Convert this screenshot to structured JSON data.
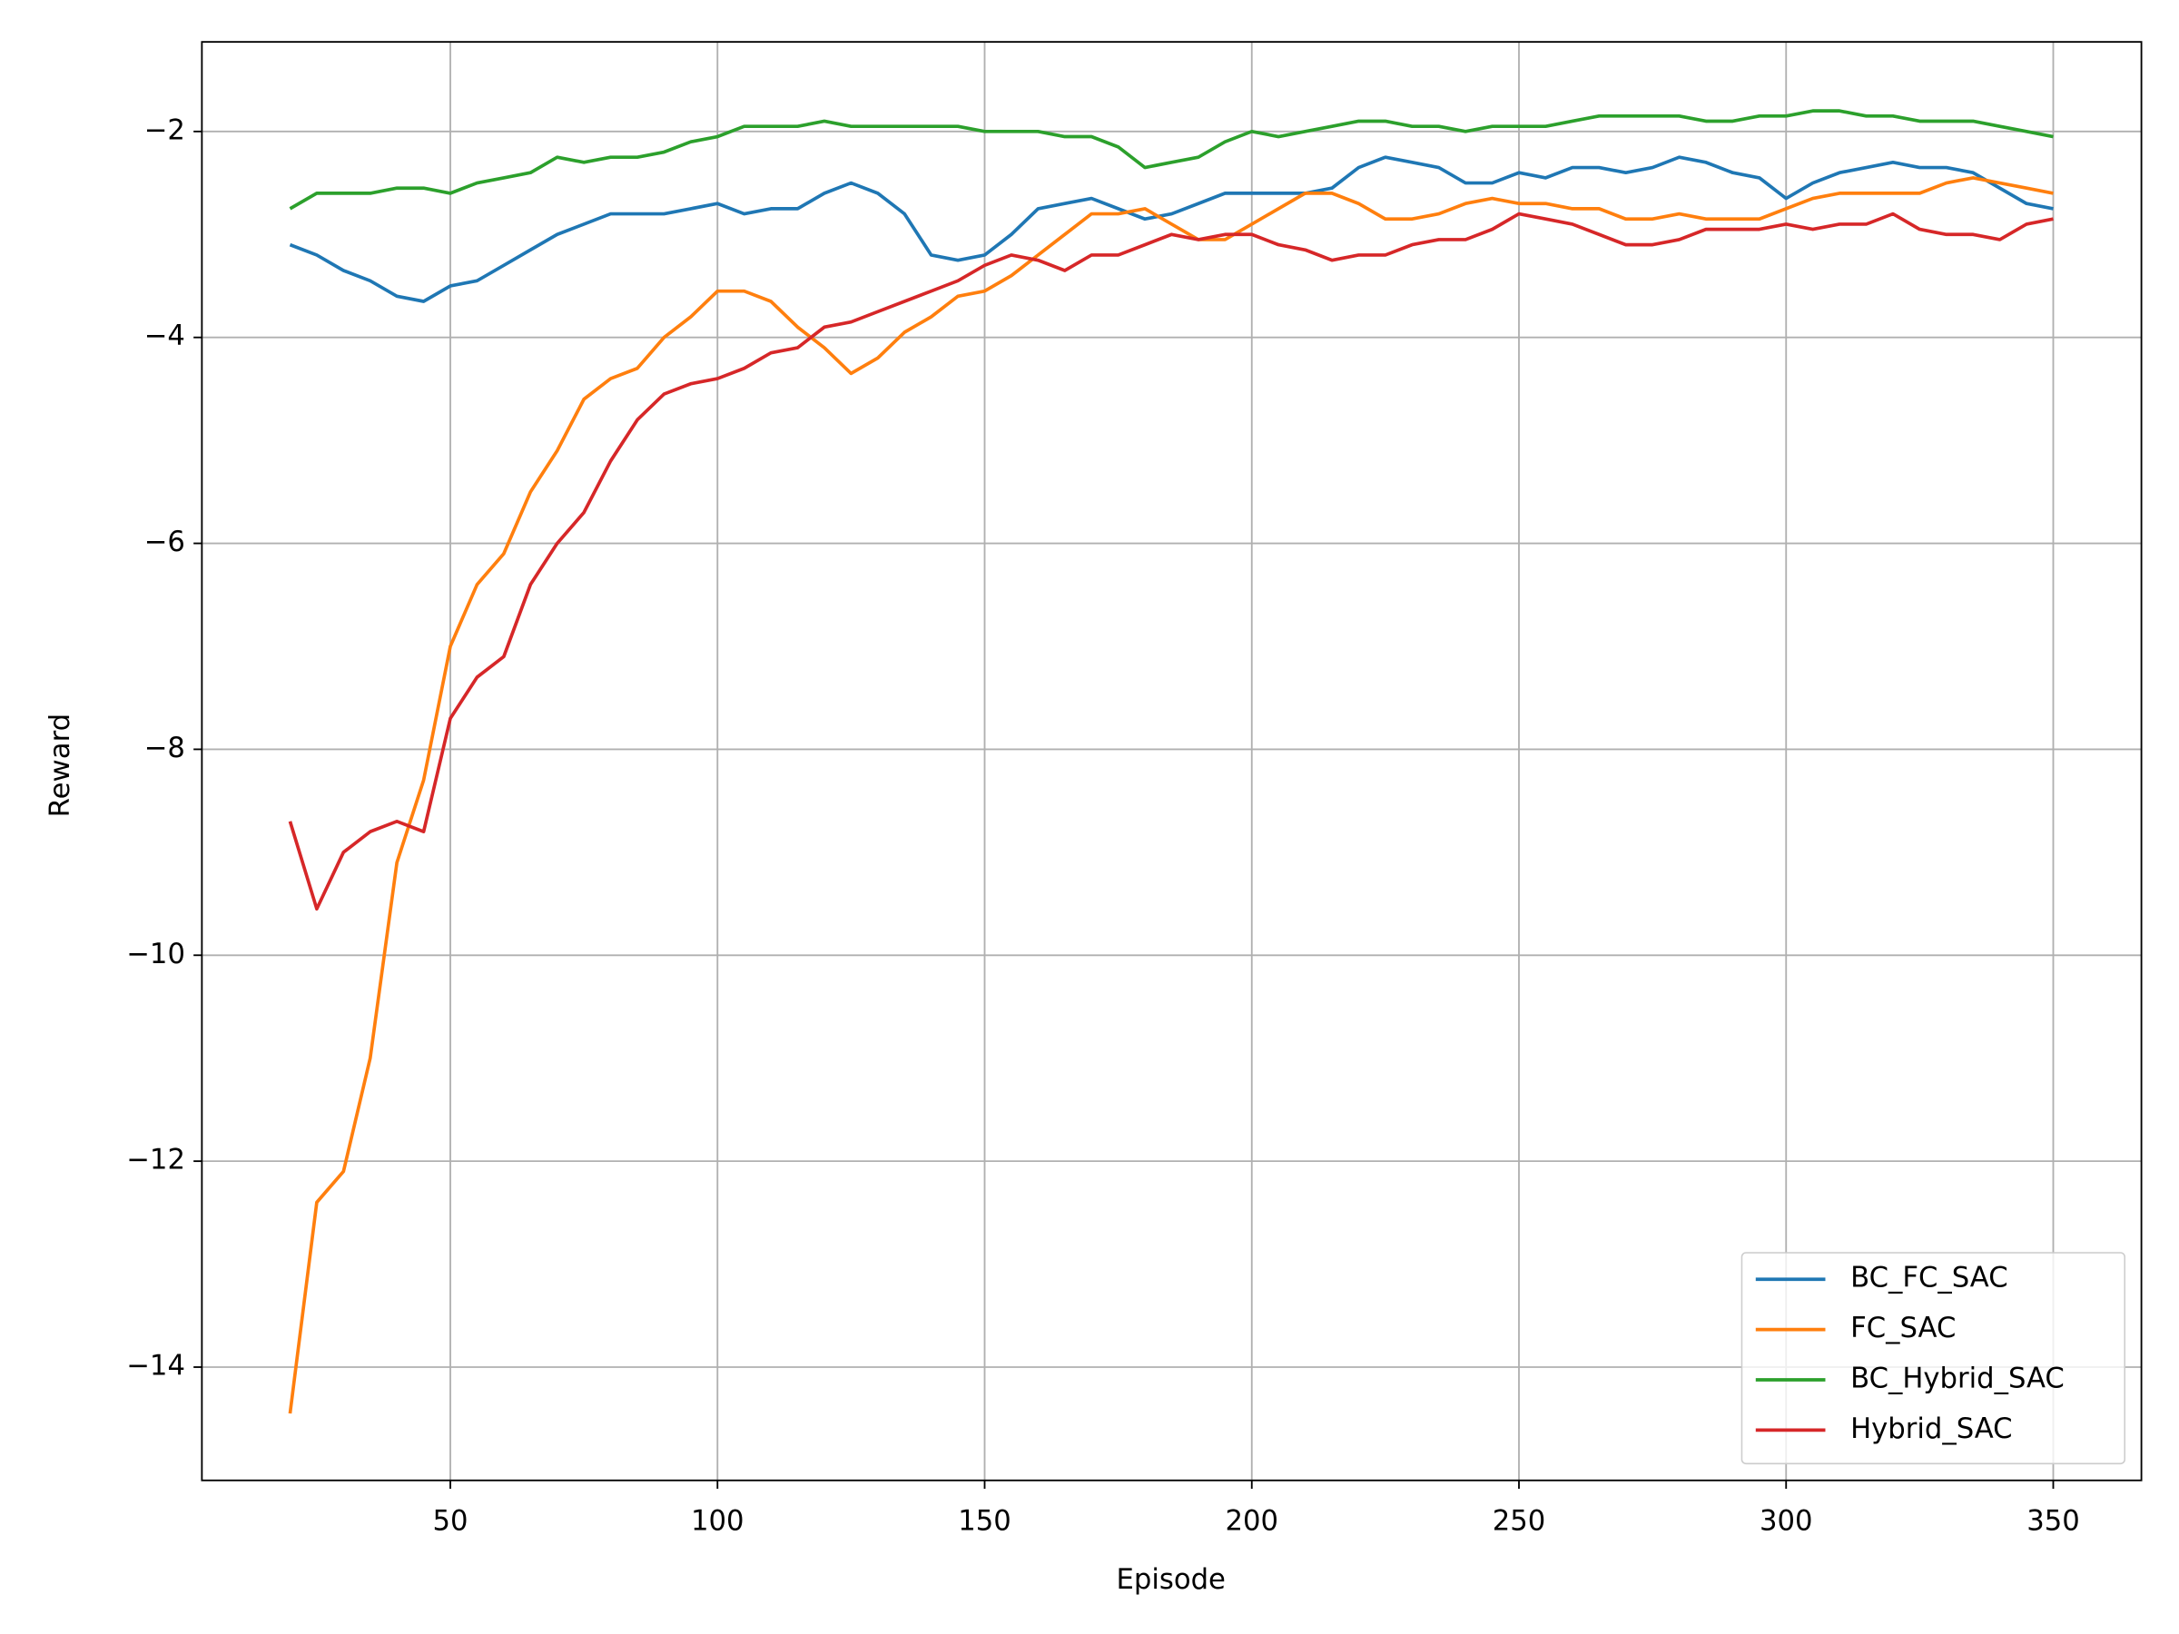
{
  "chart_data": {
    "type": "line",
    "xlabel": "Episode",
    "ylabel": "Reward",
    "x": [
      20,
      25,
      30,
      35,
      40,
      45,
      50,
      55,
      60,
      65,
      70,
      75,
      80,
      85,
      90,
      95,
      100,
      105,
      110,
      115,
      120,
      125,
      130,
      135,
      140,
      145,
      150,
      155,
      160,
      165,
      170,
      175,
      180,
      185,
      190,
      195,
      200,
      205,
      210,
      215,
      220,
      225,
      230,
      235,
      240,
      245,
      250,
      255,
      260,
      265,
      270,
      275,
      280,
      285,
      290,
      295,
      300,
      305,
      310,
      315,
      320,
      325,
      330,
      335,
      340,
      345,
      350
    ],
    "series": [
      {
        "name": "BC_FC_SAC",
        "color": "#1f77b4",
        "values": [
          -3.1,
          -3.2,
          -3.35,
          -3.45,
          -3.6,
          -3.65,
          -3.5,
          -3.45,
          -3.3,
          -3.15,
          -3.0,
          -2.9,
          -2.8,
          -2.8,
          -2.8,
          -2.75,
          -2.7,
          -2.8,
          -2.75,
          -2.75,
          -2.6,
          -2.5,
          -2.6,
          -2.8,
          -3.2,
          -3.25,
          -3.2,
          -3.0,
          -2.75,
          -2.7,
          -2.65,
          -2.75,
          -2.85,
          -2.8,
          -2.7,
          -2.6,
          -2.6,
          -2.6,
          -2.6,
          -2.55,
          -2.35,
          -2.25,
          -2.3,
          -2.35,
          -2.5,
          -2.5,
          -2.4,
          -2.45,
          -2.35,
          -2.35,
          -2.4,
          -2.35,
          -2.25,
          -2.3,
          -2.4,
          -2.45,
          -2.65,
          -2.5,
          -2.4,
          -2.35,
          -2.3,
          -2.35,
          -2.35,
          -2.4,
          -2.55,
          -2.7,
          -2.75
        ]
      },
      {
        "name": "FC_SAC",
        "color": "#ff7f0e",
        "values": [
          -14.45,
          -12.4,
          -12.1,
          -11.0,
          -9.1,
          -8.3,
          -7.0,
          -6.4,
          -6.1,
          -5.5,
          -5.1,
          -4.6,
          -4.4,
          -4.3,
          -4.0,
          -3.8,
          -3.55,
          -3.55,
          -3.65,
          -3.9,
          -4.1,
          -4.35,
          -4.2,
          -3.95,
          -3.8,
          -3.6,
          -3.55,
          -3.4,
          -3.2,
          -3.0,
          -2.8,
          -2.8,
          -2.75,
          -2.9,
          -3.05,
          -3.05,
          -2.9,
          -2.75,
          -2.6,
          -2.6,
          -2.7,
          -2.85,
          -2.85,
          -2.8,
          -2.7,
          -2.65,
          -2.7,
          -2.7,
          -2.75,
          -2.75,
          -2.85,
          -2.85,
          -2.8,
          -2.85,
          -2.85,
          -2.85,
          -2.75,
          -2.65,
          -2.6,
          -2.6,
          -2.6,
          -2.6,
          -2.5,
          -2.45,
          -2.5,
          -2.55,
          -2.6
        ]
      },
      {
        "name": "BC_Hybrid_SAC",
        "color": "#2ca02c",
        "values": [
          -2.75,
          -2.6,
          -2.6,
          -2.6,
          -2.55,
          -2.55,
          -2.6,
          -2.5,
          -2.45,
          -2.4,
          -2.25,
          -2.3,
          -2.25,
          -2.25,
          -2.2,
          -2.1,
          -2.05,
          -1.95,
          -1.95,
          -1.95,
          -1.9,
          -1.95,
          -1.95,
          -1.95,
          -1.95,
          -1.95,
          -2.0,
          -2.0,
          -2.0,
          -2.05,
          -2.05,
          -2.15,
          -2.35,
          -2.3,
          -2.25,
          -2.1,
          -2.0,
          -2.05,
          -2.0,
          -1.95,
          -1.9,
          -1.9,
          -1.95,
          -1.95,
          -2.0,
          -1.95,
          -1.95,
          -1.95,
          -1.9,
          -1.85,
          -1.85,
          -1.85,
          -1.85,
          -1.9,
          -1.9,
          -1.85,
          -1.85,
          -1.8,
          -1.8,
          -1.85,
          -1.85,
          -1.9,
          -1.9,
          -1.9,
          -1.95,
          -2.0,
          -2.05
        ]
      },
      {
        "name": "Hybrid_SAC",
        "color": "#d62728",
        "values": [
          -8.7,
          -9.55,
          -9.0,
          -8.8,
          -8.7,
          -8.8,
          -7.7,
          -7.3,
          -7.1,
          -6.4,
          -6.0,
          -5.7,
          -5.2,
          -4.8,
          -4.55,
          -4.45,
          -4.4,
          -4.3,
          -4.15,
          -4.1,
          -3.9,
          -3.85,
          -3.75,
          -3.65,
          -3.55,
          -3.45,
          -3.3,
          -3.2,
          -3.25,
          -3.35,
          -3.2,
          -3.2,
          -3.1,
          -3.0,
          -3.05,
          -3.0,
          -3.0,
          -3.1,
          -3.15,
          -3.25,
          -3.2,
          -3.2,
          -3.1,
          -3.05,
          -3.05,
          -2.95,
          -2.8,
          -2.85,
          -2.9,
          -3.0,
          -3.1,
          -3.1,
          -3.05,
          -2.95,
          -2.95,
          -2.95,
          -2.9,
          -2.95,
          -2.9,
          -2.9,
          -2.8,
          -2.95,
          -3.0,
          -3.0,
          -3.05,
          -2.9,
          -2.85
        ]
      }
    ],
    "xlim": [
      3.5,
      366.5
    ],
    "xticks": [
      50,
      100,
      150,
      200,
      250,
      300,
      350
    ],
    "ylim": [
      -15.1,
      -1.13
    ],
    "yticks": [
      {
        "value": -14,
        "label": "−14"
      },
      {
        "value": -12,
        "label": "−12"
      },
      {
        "value": -10,
        "label": "−10"
      },
      {
        "value": -8,
        "label": "−8"
      },
      {
        "value": -6,
        "label": "−6"
      },
      {
        "value": -4,
        "label": "−4"
      },
      {
        "value": -2,
        "label": "−2"
      }
    ],
    "grid": true,
    "legend": "lower right"
  }
}
